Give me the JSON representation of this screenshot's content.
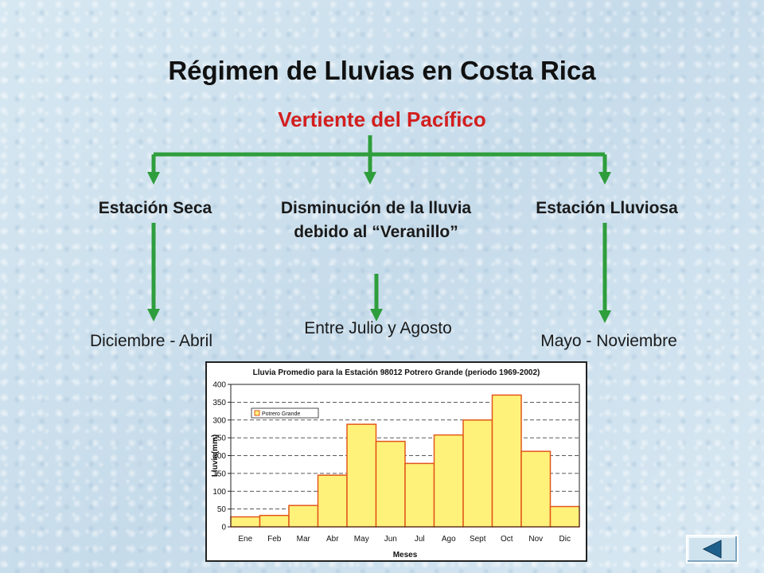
{
  "title": "Régimen de Lluvias en Costa Rica",
  "subtitle": "Vertiente del Pacífico",
  "branches": [
    {
      "heading": "Estación Seca",
      "period": "Diciembre - Abril"
    },
    {
      "heading": "Disminución de la lluvia debido al “Veranillo”",
      "period": "Entre Julio y Agosto"
    },
    {
      "heading": "Estación Lluviosa",
      "period": "Mayo - Noviembre"
    }
  ],
  "colors": {
    "title": "#111111",
    "subtitle": "#d21e1e",
    "arrow": "#2e9e3c",
    "bar_fill": "#fff27a",
    "bar_stroke": "#e2571a"
  },
  "nav": {
    "back_icon": "left-triangle-icon"
  },
  "chart_data": {
    "type": "bar",
    "title": "Lluvia Promedio para la Estación 98012 Potrero Grande (periodo 1969-2002)",
    "xlabel": "Meses",
    "ylabel": "Lluvia(mm)",
    "categories": [
      "Ene",
      "Feb",
      "Mar",
      "Abr",
      "May",
      "Jun",
      "Jul",
      "Ago",
      "Sept",
      "Oct",
      "Nov",
      "Dic"
    ],
    "series": [
      {
        "name": "Potrero Grande",
        "values": [
          28,
          32,
          60,
          145,
          288,
          240,
          178,
          258,
          300,
          370,
          212,
          57
        ]
      }
    ],
    "ylim": [
      0,
      400
    ],
    "yticks": [
      0,
      50,
      100,
      150,
      200,
      250,
      300,
      350,
      400
    ],
    "grid": true,
    "legend": "top-left"
  }
}
